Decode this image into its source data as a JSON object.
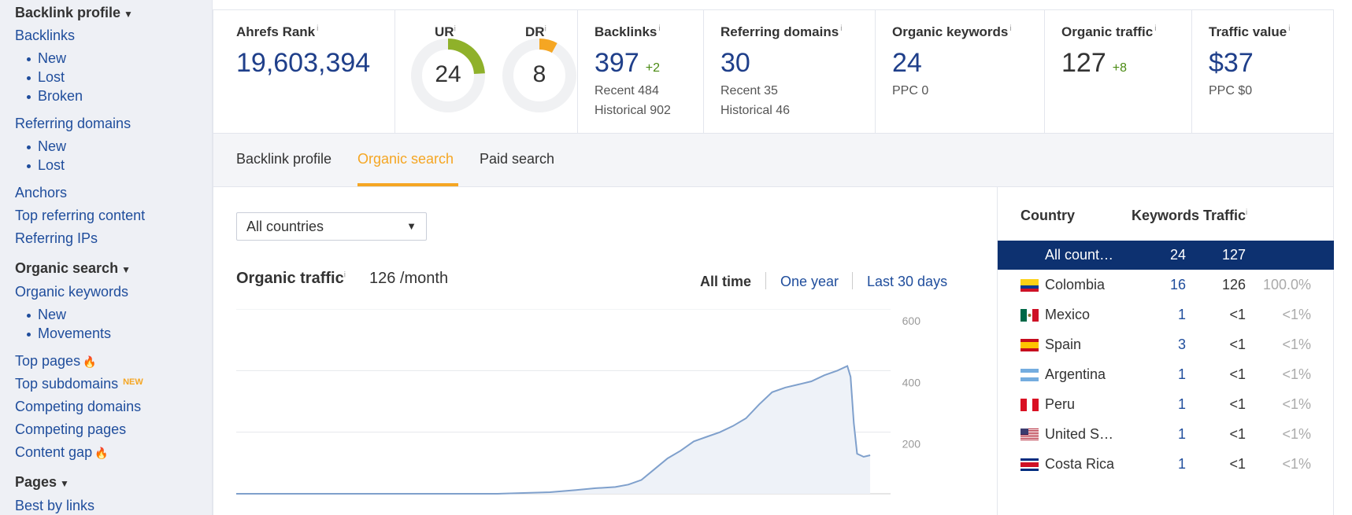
{
  "sidebar": {
    "backlink_profile": "Backlink profile",
    "backlinks": "Backlinks",
    "backlinks_new": "New",
    "backlinks_lost": "Lost",
    "backlinks_broken": "Broken",
    "referring_domains": "Referring domains",
    "rd_new": "New",
    "rd_lost": "Lost",
    "anchors": "Anchors",
    "top_referring_content": "Top referring content",
    "referring_ips": "Referring IPs",
    "organic_search": "Organic search",
    "organic_keywords": "Organic keywords",
    "ok_new": "New",
    "ok_movements": "Movements",
    "top_pages": "Top pages",
    "top_subdomains": "Top subdomains",
    "new_tag": "NEW",
    "competing_domains": "Competing domains",
    "competing_pages": "Competing pages",
    "content_gap": "Content gap",
    "pages": "Pages",
    "best_by_links": "Best by links"
  },
  "metrics": {
    "ahrefs_rank_label": "Ahrefs Rank",
    "ahrefs_rank": "19,603,394",
    "ur_label": "UR",
    "ur": 24,
    "dr_label": "DR",
    "dr": 8,
    "backlinks_label": "Backlinks",
    "backlinks": "397",
    "backlinks_delta": "+2",
    "backlinks_recent": "Recent 484",
    "backlinks_historical": "Historical 902",
    "rd_label": "Referring domains",
    "rd": "30",
    "rd_recent": "Recent 35",
    "rd_historical": "Historical 46",
    "ok_label": "Organic keywords",
    "ok": "24",
    "ok_ppc": "PPC 0",
    "ot_label": "Organic traffic",
    "ot": "127",
    "ot_delta": "+8",
    "tv_label": "Traffic value",
    "tv": "$37",
    "tv_ppc": "PPC $0"
  },
  "tabs": {
    "backlink_profile": "Backlink profile",
    "organic_search": "Organic search",
    "paid_search": "Paid search"
  },
  "main": {
    "country_select": "All countries",
    "title": "Organic traffic",
    "value": "126 /month",
    "range_all": "All time",
    "range_year": "One year",
    "range_30": "Last 30 days"
  },
  "chart_data": {
    "type": "area",
    "title": "Organic traffic",
    "ylim": [
      0,
      600
    ],
    "yticks": [
      "600",
      "400",
      "200"
    ],
    "ytick_values": [
      600,
      400,
      200
    ],
    "x": [
      0,
      0.2,
      0.4,
      0.48,
      0.52,
      0.55,
      0.58,
      0.6,
      0.62,
      0.64,
      0.66,
      0.68,
      0.7,
      0.72,
      0.74,
      0.76,
      0.78,
      0.8,
      0.82,
      0.84,
      0.86,
      0.88,
      0.9,
      0.92,
      0.935,
      0.94,
      0.945,
      0.95,
      0.955,
      0.96,
      0.97
    ],
    "values": [
      0,
      0,
      0,
      5,
      12,
      18,
      22,
      30,
      45,
      80,
      115,
      140,
      170,
      185,
      200,
      220,
      245,
      290,
      330,
      345,
      355,
      365,
      385,
      400,
      415,
      380,
      230,
      130,
      125,
      120,
      125
    ]
  },
  "country_table": {
    "headers": {
      "country": "Country",
      "keywords": "Keywords",
      "traffic": "Traffic"
    },
    "rows": [
      {
        "flag": "none",
        "name": "All count…",
        "keywords": "24",
        "traffic": "127",
        "pct": ""
      },
      {
        "flag": "colombia",
        "name": "Colombia",
        "keywords": "16",
        "traffic": "126",
        "pct": "100.0%"
      },
      {
        "flag": "mexico",
        "name": "Mexico",
        "keywords": "1",
        "traffic": "<1",
        "pct": "<1%"
      },
      {
        "flag": "spain",
        "name": "Spain",
        "keywords": "3",
        "traffic": "<1",
        "pct": "<1%"
      },
      {
        "flag": "argentina",
        "name": "Argentina",
        "keywords": "1",
        "traffic": "<1",
        "pct": "<1%"
      },
      {
        "flag": "peru",
        "name": "Peru",
        "keywords": "1",
        "traffic": "<1",
        "pct": "<1%"
      },
      {
        "flag": "usa",
        "name": "United S…",
        "keywords": "1",
        "traffic": "<1",
        "pct": "<1%"
      },
      {
        "flag": "costarica",
        "name": "Costa Rica",
        "keywords": "1",
        "traffic": "<1",
        "pct": "<1%"
      }
    ]
  }
}
